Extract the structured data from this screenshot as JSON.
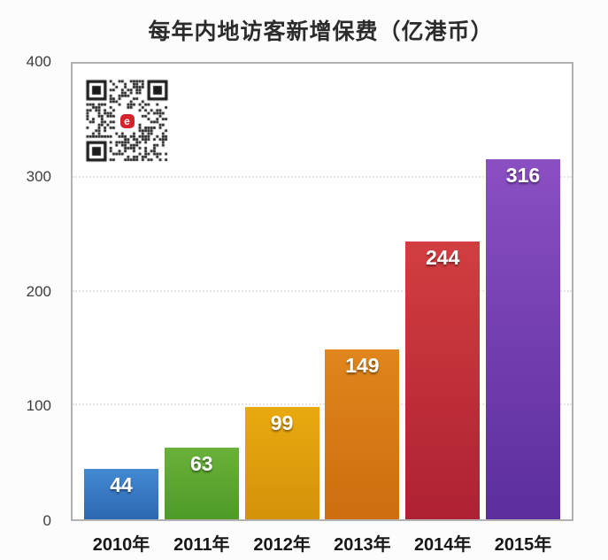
{
  "page": {
    "background": "#fcfcfc",
    "plot_border_color": "#b3b0b0",
    "gridline_color": "#e7e5e3"
  },
  "header": {
    "title": "每年内地访客新增保费（亿港币）"
  },
  "qr_code": {
    "description": "qr-code-with-center-logo",
    "center_logo_letter": "e",
    "center_logo_color": "#d5232e"
  },
  "chart_data": {
    "type": "bar",
    "title": "每年内地访客新增保费（亿港币）",
    "categories": [
      "2010年",
      "2011年",
      "2012年",
      "2013年",
      "2014年",
      "2015年"
    ],
    "values": [
      44,
      63,
      99,
      149,
      244,
      316
    ],
    "value_label_color": "#ffffff",
    "bar_colors_top": [
      "#4489d3",
      "#6ab13a",
      "#e9a90f",
      "#e0861c",
      "#d23e40",
      "#8a4fc3"
    ],
    "bar_colors_bottom": [
      "#2c68b2",
      "#4e9b27",
      "#d3920a",
      "#cd6d10",
      "#ae2133",
      "#5c2e9d"
    ],
    "xlabel": "",
    "ylabel": "",
    "ylim": [
      0,
      400
    ],
    "yticks": [
      0,
      100,
      200,
      300,
      400
    ],
    "grid": "horizontal dotted lines at 100, 200, 300",
    "legend": "none",
    "value_labels_position": "inside top of bars"
  }
}
